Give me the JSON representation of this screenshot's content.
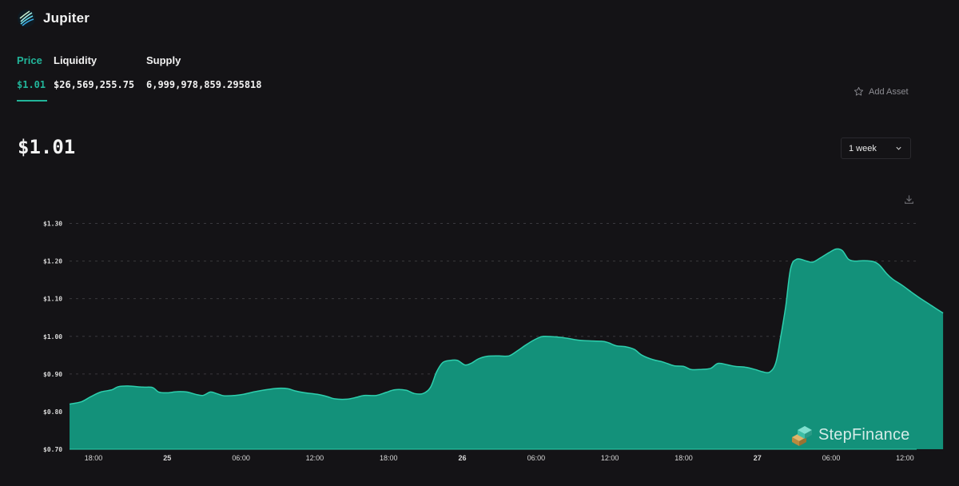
{
  "app": {
    "title": "Jupiter",
    "logo_icon": "jupiter-logo-icon"
  },
  "tabs": [
    {
      "label": "Price",
      "value": "$1.01",
      "active": true
    },
    {
      "label": "Liquidity",
      "value": "$26,569,255.75",
      "active": false
    },
    {
      "label": "Supply",
      "value": "6,999,978,859.295818",
      "active": false
    }
  ],
  "add_asset": {
    "label": "Add Asset",
    "icon": "star-icon"
  },
  "current_price": "$1.01",
  "range_select": {
    "selected": "1 week",
    "icon": "chevron-down-icon"
  },
  "download_icon": "download-icon",
  "watermark": {
    "text": "StepFinance",
    "icon": "stepfinance-logo-icon"
  },
  "colors": {
    "accent": "#22b59a",
    "area": "#13917a",
    "line": "#2ecfae",
    "background": "#141316"
  },
  "chart_data": {
    "type": "area",
    "title": "",
    "xlabel": "",
    "ylabel": "",
    "y_tick_labels": [
      "$0.70",
      "$0.80",
      "$0.90",
      "$1.00",
      "$1.10",
      "$1.20",
      "$1.30"
    ],
    "y_ticks": [
      0.7,
      0.8,
      0.9,
      1.0,
      1.1,
      1.2,
      1.3
    ],
    "ylim": [
      0.7,
      1.3
    ],
    "x_unit": "hours from first tick (18:00)",
    "x_ticks": [
      {
        "label": "18:00",
        "x": 0,
        "bold": false
      },
      {
        "label": "25",
        "x": 6,
        "bold": true
      },
      {
        "label": "06:00",
        "x": 12,
        "bold": false
      },
      {
        "label": "12:00",
        "x": 18,
        "bold": false
      },
      {
        "label": "18:00",
        "x": 24,
        "bold": false
      },
      {
        "label": "26",
        "x": 30,
        "bold": true
      },
      {
        "label": "06:00",
        "x": 36,
        "bold": false
      },
      {
        "label": "12:00",
        "x": 42,
        "bold": false
      },
      {
        "label": "18:00",
        "x": 48,
        "bold": false
      },
      {
        "label": "27",
        "x": 54,
        "bold": true
      },
      {
        "label": "06:00",
        "x": 60,
        "bold": false
      },
      {
        "label": "12:00",
        "x": 66,
        "bold": false
      }
    ],
    "xlim": [
      -1.95,
      66.95
    ],
    "grid": "horizontal dashed",
    "series": [
      {
        "name": "",
        "points": [
          [
            -1.95,
            0.82
          ],
          [
            -1.0,
            0.826
          ],
          [
            -0.2,
            0.84
          ],
          [
            0.6,
            0.852
          ],
          [
            1.5,
            0.858
          ],
          [
            2.0,
            0.866
          ],
          [
            2.8,
            0.868
          ],
          [
            4.0,
            0.865
          ],
          [
            4.8,
            0.864
          ],
          [
            5.3,
            0.852
          ],
          [
            6.0,
            0.85
          ],
          [
            6.8,
            0.853
          ],
          [
            7.6,
            0.852
          ],
          [
            8.3,
            0.846
          ],
          [
            8.9,
            0.843
          ],
          [
            9.5,
            0.852
          ],
          [
            10.0,
            0.848
          ],
          [
            10.6,
            0.842
          ],
          [
            11.5,
            0.843
          ],
          [
            12.2,
            0.846
          ],
          [
            13.0,
            0.852
          ],
          [
            14.0,
            0.858
          ],
          [
            15.0,
            0.862
          ],
          [
            15.8,
            0.861
          ],
          [
            16.4,
            0.855
          ],
          [
            17.2,
            0.85
          ],
          [
            18.2,
            0.846
          ],
          [
            19.0,
            0.84
          ],
          [
            19.6,
            0.834
          ],
          [
            20.6,
            0.833
          ],
          [
            21.4,
            0.838
          ],
          [
            22.0,
            0.843
          ],
          [
            23.0,
            0.843
          ],
          [
            23.8,
            0.851
          ],
          [
            24.5,
            0.858
          ],
          [
            25.4,
            0.857
          ],
          [
            26.1,
            0.848
          ],
          [
            26.8,
            0.848
          ],
          [
            27.4,
            0.864
          ],
          [
            27.9,
            0.905
          ],
          [
            28.4,
            0.93
          ],
          [
            29.0,
            0.936
          ],
          [
            29.6,
            0.936
          ],
          [
            30.2,
            0.924
          ],
          [
            30.7,
            0.928
          ],
          [
            31.3,
            0.94
          ],
          [
            32.0,
            0.947
          ],
          [
            33.0,
            0.948
          ],
          [
            33.8,
            0.948
          ],
          [
            34.5,
            0.962
          ],
          [
            35.3,
            0.98
          ],
          [
            36.0,
            0.993
          ],
          [
            36.6,
            1.0
          ],
          [
            37.8,
            0.998
          ],
          [
            38.5,
            0.995
          ],
          [
            39.4,
            0.99
          ],
          [
            40.3,
            0.988
          ],
          [
            41.3,
            0.987
          ],
          [
            41.8,
            0.984
          ],
          [
            42.5,
            0.975
          ],
          [
            43.3,
            0.972
          ],
          [
            44.0,
            0.965
          ],
          [
            44.6,
            0.95
          ],
          [
            45.5,
            0.938
          ],
          [
            46.3,
            0.932
          ],
          [
            47.2,
            0.922
          ],
          [
            48.0,
            0.92
          ],
          [
            48.6,
            0.912
          ],
          [
            49.4,
            0.912
          ],
          [
            50.2,
            0.915
          ],
          [
            50.8,
            0.928
          ],
          [
            51.6,
            0.924
          ],
          [
            52.2,
            0.92
          ],
          [
            53.0,
            0.918
          ],
          [
            53.8,
            0.912
          ],
          [
            54.4,
            0.906
          ],
          [
            55.0,
            0.905
          ],
          [
            55.5,
            0.93
          ],
          [
            55.9,
            1.0
          ],
          [
            56.3,
            1.08
          ],
          [
            56.7,
            1.18
          ],
          [
            57.2,
            1.205
          ],
          [
            58.0,
            1.2
          ],
          [
            58.5,
            1.197
          ],
          [
            59.2,
            1.21
          ],
          [
            59.8,
            1.222
          ],
          [
            60.4,
            1.232
          ],
          [
            60.9,
            1.228
          ],
          [
            61.4,
            1.205
          ],
          [
            61.9,
            1.2
          ],
          [
            62.6,
            1.201
          ],
          [
            63.4,
            1.199
          ],
          [
            63.9,
            1.19
          ],
          [
            64.5,
            1.167
          ],
          [
            65.0,
            1.152
          ],
          [
            65.8,
            1.135
          ],
          [
            66.5,
            1.118
          ],
          [
            67.2,
            1.102
          ],
          [
            68.0,
            1.085
          ],
          [
            68.7,
            1.07
          ],
          [
            69.1,
            1.062
          ]
        ]
      }
    ]
  }
}
